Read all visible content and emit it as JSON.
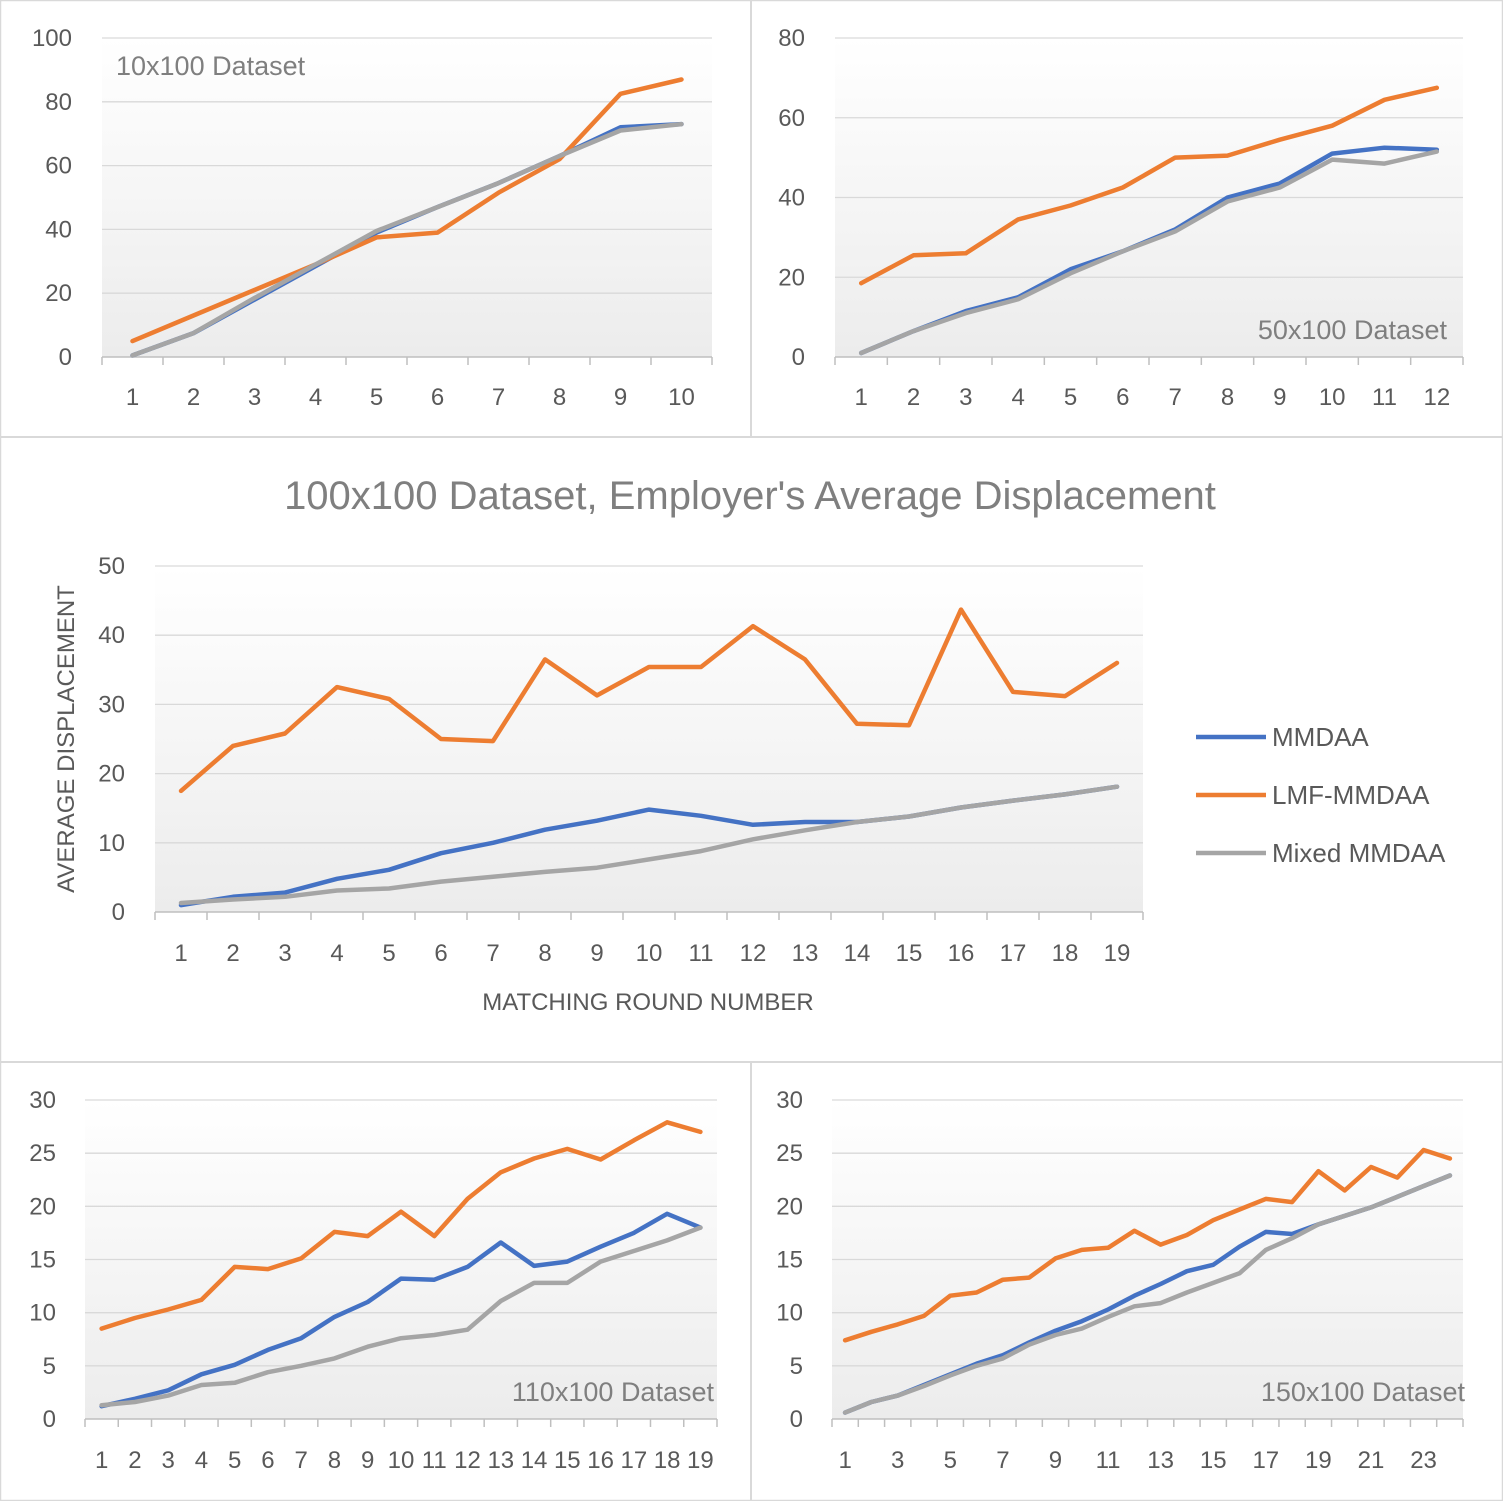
{
  "colors": {
    "MMDAA": "#4472c4",
    "LMF-MMDAA": "#ed7d31",
    "Mixed MMDAA": "#a5a5a5",
    "grid": "#d9d9d9",
    "panel_border": "#d9d9d9"
  },
  "chart_data": [
    {
      "id": "c10",
      "type": "line",
      "label": "10x100 Dataset",
      "label_position": "top-left",
      "title": "",
      "xlabel": "",
      "ylabel": "",
      "categories": [
        "1",
        "2",
        "3",
        "4",
        "5",
        "6",
        "7",
        "8",
        "9",
        "10"
      ],
      "ylim": [
        0,
        100
      ],
      "yticks": [
        0,
        20,
        40,
        60,
        80,
        100
      ],
      "grid": true,
      "series": [
        {
          "name": "MMDAA",
          "values": [
            0.5,
            7.5,
            18,
            28.5,
            39,
            47,
            54.5,
            63,
            72,
            73
          ]
        },
        {
          "name": "LMF-MMDAA",
          "values": [
            5,
            13,
            21,
            29,
            37.5,
            39,
            51.5,
            62,
            82.5,
            87
          ]
        },
        {
          "name": "Mixed MMDAA",
          "values": [
            0.5,
            7.5,
            18.5,
            29,
            39.5,
            47,
            54.5,
            63,
            71,
            73
          ]
        }
      ]
    },
    {
      "id": "c50",
      "type": "line",
      "label": "50x100 Dataset",
      "label_position": "bottom-right",
      "title": "",
      "xlabel": "",
      "ylabel": "",
      "categories": [
        "1",
        "2",
        "3",
        "4",
        "5",
        "6",
        "7",
        "8",
        "9",
        "10",
        "11",
        "12"
      ],
      "ylim": [
        0,
        80
      ],
      "yticks": [
        0,
        20,
        40,
        60,
        80
      ],
      "grid": true,
      "series": [
        {
          "name": "MMDAA",
          "values": [
            1,
            6.5,
            11.5,
            15,
            22,
            26.5,
            32,
            40,
            43.5,
            51,
            52.5,
            52
          ]
        },
        {
          "name": "LMF-MMDAA",
          "values": [
            18.5,
            25.5,
            26,
            34.5,
            38,
            42.5,
            50,
            50.5,
            54.5,
            58,
            64.5,
            67.5
          ]
        },
        {
          "name": "Mixed MMDAA",
          "values": [
            1,
            6.5,
            11,
            14.5,
            21,
            26.5,
            31.5,
            39,
            42.5,
            49.5,
            48.5,
            51.5
          ]
        }
      ]
    },
    {
      "id": "c100",
      "type": "line",
      "label": "",
      "title": "100x100 Dataset, Employer's Average Displacement",
      "xlabel": "MATCHING ROUND NUMBER",
      "ylabel": "AVERAGE DISPLACEMENT",
      "categories": [
        "1",
        "2",
        "3",
        "4",
        "5",
        "6",
        "7",
        "8",
        "9",
        "10",
        "11",
        "12",
        "13",
        "14",
        "15",
        "16",
        "17",
        "18",
        "19"
      ],
      "ylim": [
        0,
        50
      ],
      "yticks": [
        0,
        10,
        20,
        30,
        40,
        50
      ],
      "grid": true,
      "legend": "right",
      "series": [
        {
          "name": "MMDAA",
          "values": [
            1,
            2.2,
            2.8,
            4.8,
            6.1,
            8.5,
            10,
            11.9,
            13.2,
            14.8,
            13.9,
            12.6,
            13,
            13,
            13.8,
            15.1,
            16.1,
            17,
            18.1
          ]
        },
        {
          "name": "LMF-MMDAA",
          "values": [
            17.5,
            24,
            25.8,
            32.5,
            30.8,
            25,
            24.7,
            36.5,
            31.3,
            35.4,
            35.4,
            41.3,
            36.5,
            27.2,
            27,
            43.7,
            31.8,
            31.2,
            36
          ]
        },
        {
          "name": "Mixed MMDAA",
          "values": [
            1.3,
            1.8,
            2.2,
            3.1,
            3.4,
            4.4,
            5.1,
            5.8,
            6.4,
            7.6,
            8.8,
            10.5,
            11.8,
            13,
            13.8,
            15.1,
            16.1,
            17,
            18.1
          ]
        }
      ]
    },
    {
      "id": "c110",
      "type": "line",
      "label": "110x100 Dataset",
      "label_position": "bottom-right",
      "title": "",
      "xlabel": "",
      "ylabel": "",
      "categories": [
        "1",
        "2",
        "3",
        "4",
        "5",
        "6",
        "7",
        "8",
        "9",
        "10",
        "11",
        "12",
        "13",
        "14",
        "15",
        "16",
        "17",
        "18",
        "19"
      ],
      "ylim": [
        0,
        30
      ],
      "yticks": [
        0,
        5,
        10,
        15,
        20,
        25,
        30
      ],
      "grid": true,
      "series": [
        {
          "name": "MMDAA",
          "values": [
            1.2,
            1.9,
            2.7,
            4.2,
            5.1,
            6.5,
            7.6,
            9.6,
            11,
            13.2,
            13.1,
            14.3,
            16.6,
            14.4,
            14.8,
            16.2,
            17.5,
            19.3,
            18
          ]
        },
        {
          "name": "LMF-MMDAA",
          "values": [
            8.5,
            9.5,
            10.3,
            11.2,
            14.3,
            14.1,
            15.1,
            17.6,
            17.2,
            19.5,
            17.2,
            20.7,
            23.2,
            24.5,
            25.4,
            24.4,
            26.2,
            27.9,
            27
          ]
        },
        {
          "name": "Mixed MMDAA",
          "values": [
            1.3,
            1.6,
            2.2,
            3.2,
            3.4,
            4.4,
            5,
            5.7,
            6.8,
            7.6,
            7.9,
            8.4,
            11.1,
            12.8,
            12.8,
            14.8,
            15.8,
            16.8,
            18
          ]
        }
      ]
    },
    {
      "id": "c150",
      "type": "line",
      "label": "150x100 Dataset",
      "label_position": "bottom-right",
      "title": "",
      "xlabel": "",
      "ylabel": "",
      "categories": [
        "1",
        "2",
        "3",
        "4",
        "5",
        "6",
        "7",
        "8",
        "9",
        "10",
        "11",
        "12",
        "13",
        "14",
        "15",
        "16",
        "17",
        "18",
        "19",
        "20",
        "21",
        "22",
        "23",
        "24"
      ],
      "xtick_labels_shown": [
        "1",
        "3",
        "5",
        "7",
        "9",
        "11",
        "13",
        "15",
        "17",
        "19",
        "21",
        "23"
      ],
      "ylim": [
        0,
        30
      ],
      "yticks": [
        0,
        5,
        10,
        15,
        20,
        25,
        30
      ],
      "grid": true,
      "series": [
        {
          "name": "MMDAA",
          "values": [
            0.6,
            1.6,
            2.2,
            3.2,
            4.2,
            5.2,
            6,
            7.2,
            8.3,
            9.2,
            10.3,
            11.6,
            12.7,
            13.9,
            14.5,
            16.2,
            17.6,
            17.4,
            18.3,
            19.1,
            19.9,
            20.9,
            21.9,
            22.9
          ]
        },
        {
          "name": "LMF-MMDAA",
          "values": [
            7.4,
            8.2,
            8.9,
            9.7,
            11.6,
            11.9,
            13.1,
            13.3,
            15.1,
            15.9,
            16.1,
            17.7,
            16.4,
            17.3,
            18.7,
            19.7,
            20.7,
            20.4,
            23.3,
            21.5,
            23.7,
            22.7,
            25.3,
            24.5
          ]
        },
        {
          "name": "Mixed MMDAA",
          "values": [
            0.6,
            1.6,
            2.2,
            3.1,
            4.1,
            5,
            5.7,
            7,
            7.9,
            8.5,
            9.6,
            10.6,
            10.9,
            11.9,
            12.8,
            13.7,
            15.9,
            17,
            18.3,
            19.1,
            19.9,
            20.9,
            21.9,
            22.9
          ]
        }
      ]
    }
  ]
}
